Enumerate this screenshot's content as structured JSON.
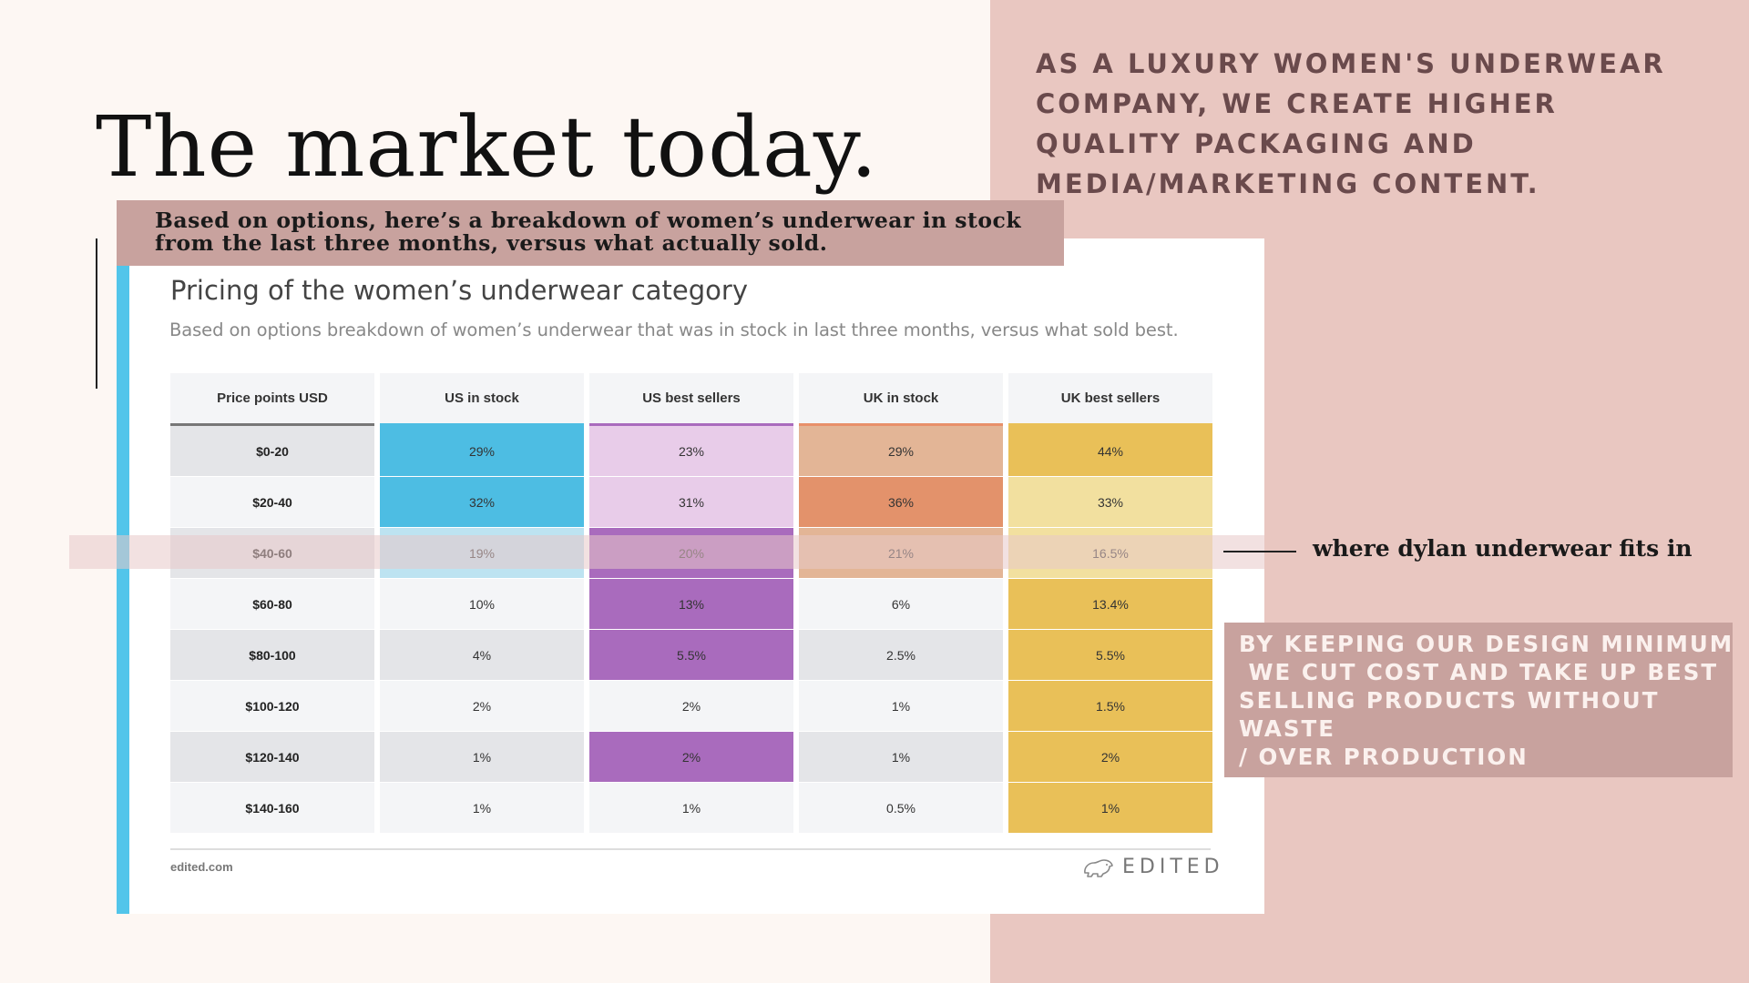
{
  "slide": {
    "headline": "The market today.",
    "top_right_text": "AS A LUXURY WOMEN'S UNDERWEAR COMPANY, WE CREATE HIGHER QUALITY PACKAGING AND MEDIA/MARKETING CONTENT.",
    "banner_line1": "Based on options, here’s a breakdown of women’s underwear in stock",
    "banner_line2": "from the last three months, versus what actually sold.",
    "fits_label": "where dylan underwear fits in",
    "design_note": "BY KEEPING OUR DESIGN MINIMUM\n WE CUT COST AND TAKE UP BEST\nSELLING PRODUCTS WITHOUT\nWASTE\n/ OVER PRODUCTION"
  },
  "card": {
    "title": "Pricing of the women’s underwear category",
    "subtitle": "Based on options breakdown of women’s underwear that was in stock in last three months, versus what sold best.",
    "footer_left": "edited.com",
    "logo_text": "EDITED"
  },
  "table": {
    "columns": [
      "Price points USD",
      "US in stock",
      "US best sellers",
      "UK in stock",
      "UK best sellers"
    ],
    "column_line_colors": [
      "#777777",
      "#4dbde3",
      "#a96bbd",
      "#e8906a",
      "#e9c058"
    ],
    "rows": [
      {
        "label": "$0-20",
        "values": [
          "29%",
          "23%",
          "29%",
          "44%"
        ]
      },
      {
        "label": "$20-40",
        "values": [
          "32%",
          "31%",
          "36%",
          "33%"
        ]
      },
      {
        "label": "$40-60",
        "values": [
          "19%",
          "20%",
          "21%",
          "16.5%"
        ]
      },
      {
        "label": "$60-80",
        "values": [
          "10%",
          "13%",
          "6%",
          "13.4%"
        ]
      },
      {
        "label": "$80-100",
        "values": [
          "4%",
          "5.5%",
          "2.5%",
          "5.5%"
        ]
      },
      {
        "label": "$100-120",
        "values": [
          "2%",
          "2%",
          "1%",
          "1.5%"
        ]
      },
      {
        "label": "$120-140",
        "values": [
          "1%",
          "2%",
          "1%",
          "2%"
        ]
      },
      {
        "label": "$140-160",
        "values": [
          "1%",
          "1%",
          "0.5%",
          "1%"
        ]
      }
    ],
    "cell_colors": [
      [
        "#e4e5e8",
        "#4dbde3",
        "#e8cce9",
        "#e3b596",
        "#e9c058"
      ],
      [
        "#f4f5f7",
        "#4dbde3",
        "#e8cce9",
        "#e3926b",
        "#f2e09f"
      ],
      [
        "#e4e5e8",
        "#bde3f1",
        "#a96bbd",
        "#e3b596",
        "#f2e09f"
      ],
      [
        "#f4f5f7",
        "#f4f5f7",
        "#a96bbd",
        "#f4f5f7",
        "#e9c058"
      ],
      [
        "#e4e5e8",
        "#e4e5e8",
        "#a96bbd",
        "#e4e5e8",
        "#e9c058"
      ],
      [
        "#f4f5f7",
        "#f4f5f7",
        "#f4f5f7",
        "#f4f5f7",
        "#e9c058"
      ],
      [
        "#e4e5e8",
        "#e4e5e8",
        "#a96bbd",
        "#e4e5e8",
        "#e9c058"
      ],
      [
        "#f4f5f7",
        "#f4f5f7",
        "#f4f5f7",
        "#f4f5f7",
        "#e9c058"
      ]
    ]
  },
  "colors": {
    "right_panel": "#e9c7c1",
    "accent_bar": "#52c5ea",
    "banner": "#c8a29e"
  },
  "icons": {
    "logo_icon": "bear-logo-icon"
  }
}
